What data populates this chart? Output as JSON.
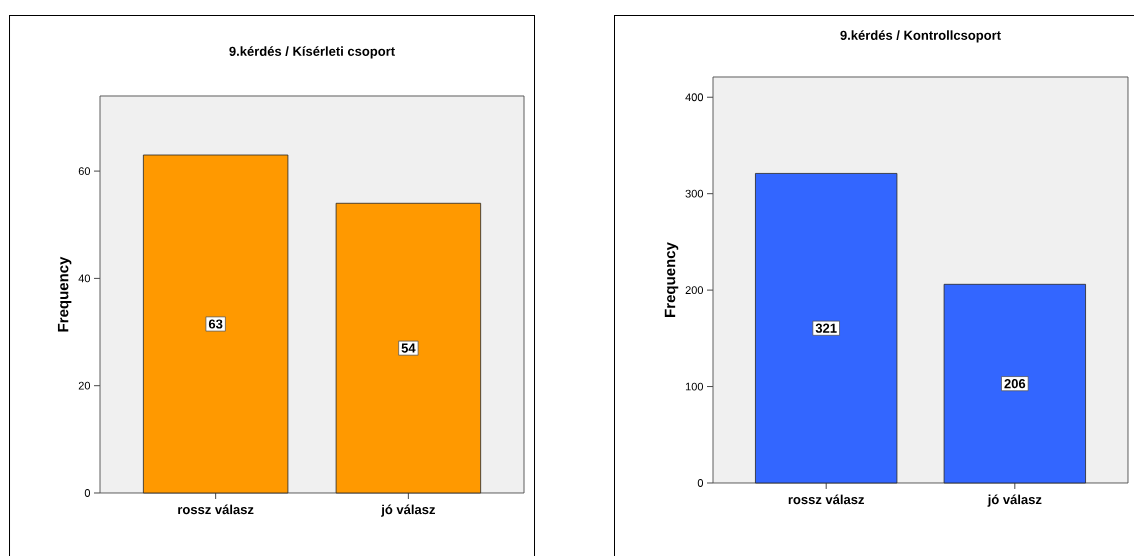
{
  "chart_data": [
    {
      "type": "bar",
      "title": "9.kérdés / Kísérleti csoport",
      "ylabel": "Frequency",
      "categories": [
        "rossz válasz",
        "jó válasz"
      ],
      "values": [
        63,
        54
      ],
      "color": "#ff9900",
      "ylim": [
        0,
        74
      ],
      "yticks": [
        0,
        20,
        40,
        60
      ],
      "data_labels": true
    },
    {
      "type": "bar",
      "title": "9.kérdés / Kontrollcsoport",
      "ylabel": "Frequency",
      "categories": [
        "rossz válasz",
        "jó válasz"
      ],
      "values": [
        321,
        206
      ],
      "color": "#3366ff",
      "ylim": [
        0,
        421
      ],
      "yticks": [
        0,
        100,
        200,
        300,
        400
      ],
      "data_labels": true
    }
  ]
}
